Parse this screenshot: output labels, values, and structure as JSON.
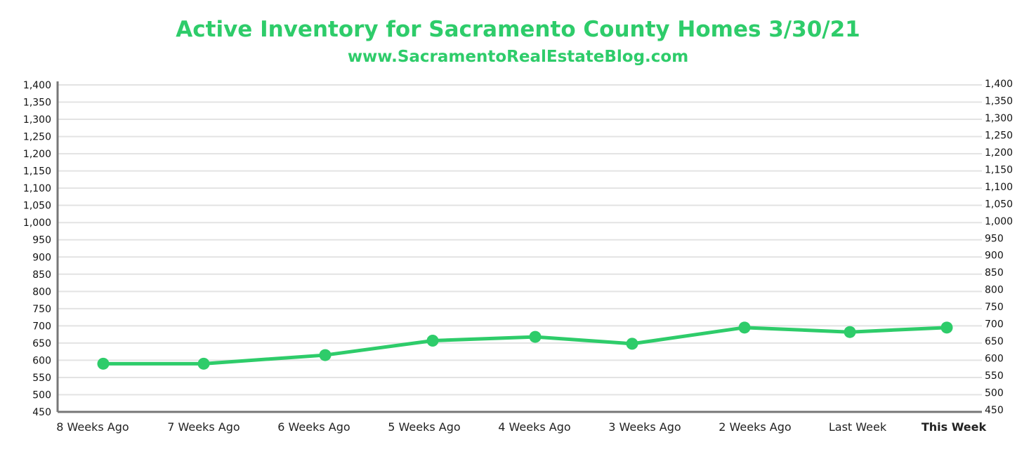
{
  "chart_data": {
    "type": "line",
    "title": "Active Inventory for Sacramento County Homes 3/30/21",
    "subtitle": "www.SacramentoRealEstateBlog.com",
    "categories": [
      "8 Weeks Ago",
      "7 Weeks Ago",
      "6 Weeks Ago",
      "5 Weeks Ago",
      "4 Weeks Ago",
      "3 Weeks Ago",
      "2 Weeks Ago",
      "Last Week",
      "This Week"
    ],
    "highlight_category": "This Week",
    "series": [
      {
        "values": [
          590,
          590,
          615,
          657,
          668,
          648,
          695,
          682,
          695
        ]
      }
    ],
    "ylim": [
      450,
      1400
    ],
    "yticks": [
      "450",
      "500",
      "550",
      "600",
      "650",
      "700",
      "750",
      "800",
      "850",
      "900",
      "950",
      "1,000",
      "1,050",
      "1,100",
      "1,150",
      "1,200",
      "1,250",
      "1,300",
      "1,350",
      "1,400"
    ],
    "grid": true,
    "secondary_axis": "right",
    "colors": {
      "line": "#2ecc6a",
      "accent_label": "#2ecc6a",
      "grid": "#e3e3e3",
      "axis": "#777777"
    }
  }
}
